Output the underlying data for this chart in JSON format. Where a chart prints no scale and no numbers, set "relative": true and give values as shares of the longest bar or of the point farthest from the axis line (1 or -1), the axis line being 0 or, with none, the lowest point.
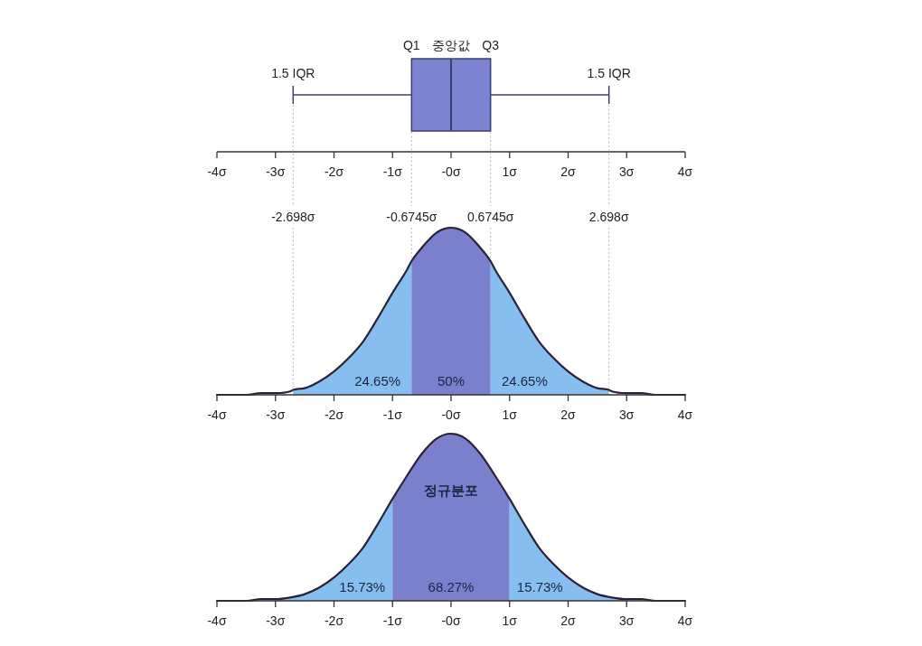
{
  "chart_data": [
    {
      "type": "box",
      "orientation": "horizontal",
      "categories": [
        null
      ],
      "color": "#7c83d1",
      "boxes": [
        {
          "low": -2.698,
          "q1": -0.6745,
          "median": 0,
          "q3": 0.6745,
          "high": 2.698
        }
      ],
      "xlim": [
        -4,
        4
      ],
      "xticks": [
        {
          "value": -4,
          "label": "-4σ"
        },
        {
          "value": -3,
          "label": "-3σ"
        },
        {
          "value": -2,
          "label": "-2σ"
        },
        {
          "value": -1,
          "label": "-1σ"
        },
        {
          "value": 0,
          "label": "-0σ"
        },
        {
          "value": 1,
          "label": "1σ"
        },
        {
          "value": 2,
          "label": "2σ"
        },
        {
          "value": 3,
          "label": "3σ"
        },
        {
          "value": 4,
          "label": "4σ"
        }
      ],
      "annotations": [
        "1.5 IQR",
        "Q1",
        "중앙값",
        "Q3",
        "1.5 IQR"
      ]
    },
    {
      "type": "area",
      "relative": true,
      "xlim": [
        -4,
        4
      ],
      "xticks": [
        {
          "value": -4,
          "label": "-4σ"
        },
        {
          "value": -3,
          "label": "-3σ"
        },
        {
          "value": -2,
          "label": "-2σ"
        },
        {
          "value": -1,
          "label": "-1σ"
        },
        {
          "value": 0,
          "label": "-0σ"
        },
        {
          "value": 1,
          "label": "1σ"
        },
        {
          "value": 2,
          "label": "2σ"
        },
        {
          "value": 3,
          "label": "3σ"
        },
        {
          "value": 4,
          "label": "4σ"
        }
      ],
      "series": [
        {
          "color": "#87bef0",
          "x": [
            -2.698,
            -2.5,
            -2.25,
            -2,
            -1.75,
            -1.5,
            -1.25,
            -1,
            -0.75,
            -0.6745
          ],
          "values": [
            0.03,
            0.04,
            0.08,
            0.14,
            0.22,
            0.32,
            0.46,
            0.61,
            0.75,
            0.8
          ]
        },
        {
          "color": "#7b80cc",
          "x": [
            -0.6745,
            -0.5,
            -0.25,
            0,
            0.25,
            0.5,
            0.6745
          ],
          "values": [
            0.8,
            0.88,
            0.97,
            1,
            0.97,
            0.88,
            0.8
          ]
        },
        {
          "color": "#87bef0",
          "x": [
            0.6745,
            0.75,
            1,
            1.25,
            1.5,
            1.75,
            2,
            2.25,
            2.5,
            2.698
          ],
          "values": [
            0.8,
            0.75,
            0.61,
            0.46,
            0.32,
            0.22,
            0.14,
            0.08,
            0.04,
            0.03
          ]
        },
        {
          "type": "line",
          "color": "#2a2236",
          "x": [
            -4,
            -3.75,
            -3.5,
            -3.25,
            -3,
            -2.75,
            -2.698,
            -2.5,
            -2.25,
            -2,
            -1.75,
            -1.5,
            -1.25,
            -1,
            -0.75,
            -0.6745,
            -0.5,
            -0.25,
            0,
            0.25,
            0.5,
            0.6745,
            0.75,
            1,
            1.25,
            1.5,
            1.75,
            2,
            2.25,
            2.5,
            2.698,
            2.75,
            3,
            3.25,
            3.5,
            3.75,
            4
          ],
          "values": [
            0,
            0,
            0,
            0.01,
            0.01,
            0.02,
            0.03,
            0.04,
            0.08,
            0.14,
            0.22,
            0.32,
            0.46,
            0.61,
            0.75,
            0.8,
            0.88,
            0.97,
            1,
            0.97,
            0.88,
            0.8,
            0.75,
            0.61,
            0.46,
            0.32,
            0.22,
            0.14,
            0.08,
            0.04,
            0.03,
            0.02,
            0.01,
            0.01,
            0,
            0,
            0
          ]
        }
      ],
      "ref_lines": [
        {
          "axis": "x",
          "value": -2.698,
          "label": "-2.698σ",
          "line_style": "dotted",
          "color": "#b8b8b8"
        },
        {
          "axis": "x",
          "value": -0.6745,
          "label": "-0.6745σ",
          "line_style": "dotted",
          "color": "#b8b8b8"
        },
        {
          "axis": "x",
          "value": 0.6745,
          "label": "0.6745σ",
          "line_style": "dotted",
          "color": "#b8b8b8"
        },
        {
          "axis": "x",
          "value": 2.698,
          "label": "2.698σ",
          "line_style": "dotted",
          "color": "#b8b8b8"
        }
      ],
      "annotations": [
        "24.65%",
        "50%",
        "24.65%"
      ]
    },
    {
      "type": "area",
      "relative": true,
      "title": "정규분포",
      "xlim": [
        -4,
        4
      ],
      "xticks": [
        {
          "value": -4,
          "label": "-4σ"
        },
        {
          "value": -3,
          "label": "-3σ"
        },
        {
          "value": -2,
          "label": "-2σ"
        },
        {
          "value": -1,
          "label": "-1σ"
        },
        {
          "value": 0,
          "label": "-0σ"
        },
        {
          "value": 1,
          "label": "1σ"
        },
        {
          "value": 2,
          "label": "2σ"
        },
        {
          "value": 3,
          "label": "3σ"
        },
        {
          "value": 4,
          "label": "4σ"
        }
      ],
      "series": [
        {
          "color": "#87bef0",
          "x": [
            -3,
            -2.75,
            -2.5,
            -2.25,
            -2,
            -1.75,
            -1.5,
            -1.25,
            -1
          ],
          "values": [
            0.01,
            0.02,
            0.04,
            0.08,
            0.14,
            0.22,
            0.32,
            0.46,
            0.61
          ]
        },
        {
          "color": "#7b80cc",
          "x": [
            -1,
            -0.75,
            -0.5,
            -0.25,
            0,
            0.25,
            0.5,
            0.75,
            1
          ],
          "values": [
            0.61,
            0.75,
            0.88,
            0.97,
            1,
            0.97,
            0.88,
            0.75,
            0.61
          ]
        },
        {
          "color": "#87bef0",
          "x": [
            1,
            1.25,
            1.5,
            1.75,
            2,
            2.25,
            2.5,
            2.75,
            3
          ],
          "values": [
            0.61,
            0.46,
            0.32,
            0.22,
            0.14,
            0.08,
            0.04,
            0.02,
            0.01
          ]
        },
        {
          "type": "line",
          "color": "#2a2236",
          "x": [
            -4,
            -3.75,
            -3.5,
            -3.25,
            -3,
            -2.75,
            -2.5,
            -2.25,
            -2,
            -1.75,
            -1.5,
            -1.25,
            -1,
            -0.75,
            -0.5,
            -0.25,
            0,
            0.25,
            0.5,
            0.75,
            1,
            1.25,
            1.5,
            1.75,
            2,
            2.25,
            2.5,
            2.75,
            3,
            3.25,
            3.5,
            3.75,
            4
          ],
          "values": [
            0,
            0,
            0,
            0.01,
            0.01,
            0.02,
            0.04,
            0.08,
            0.14,
            0.22,
            0.32,
            0.46,
            0.61,
            0.75,
            0.88,
            0.97,
            1,
            0.97,
            0.88,
            0.75,
            0.61,
            0.46,
            0.32,
            0.22,
            0.14,
            0.08,
            0.04,
            0.02,
            0.01,
            0.01,
            0,
            0,
            0
          ]
        }
      ],
      "annotations": [
        "15.73%",
        "68.27%",
        "15.73%"
      ]
    }
  ]
}
